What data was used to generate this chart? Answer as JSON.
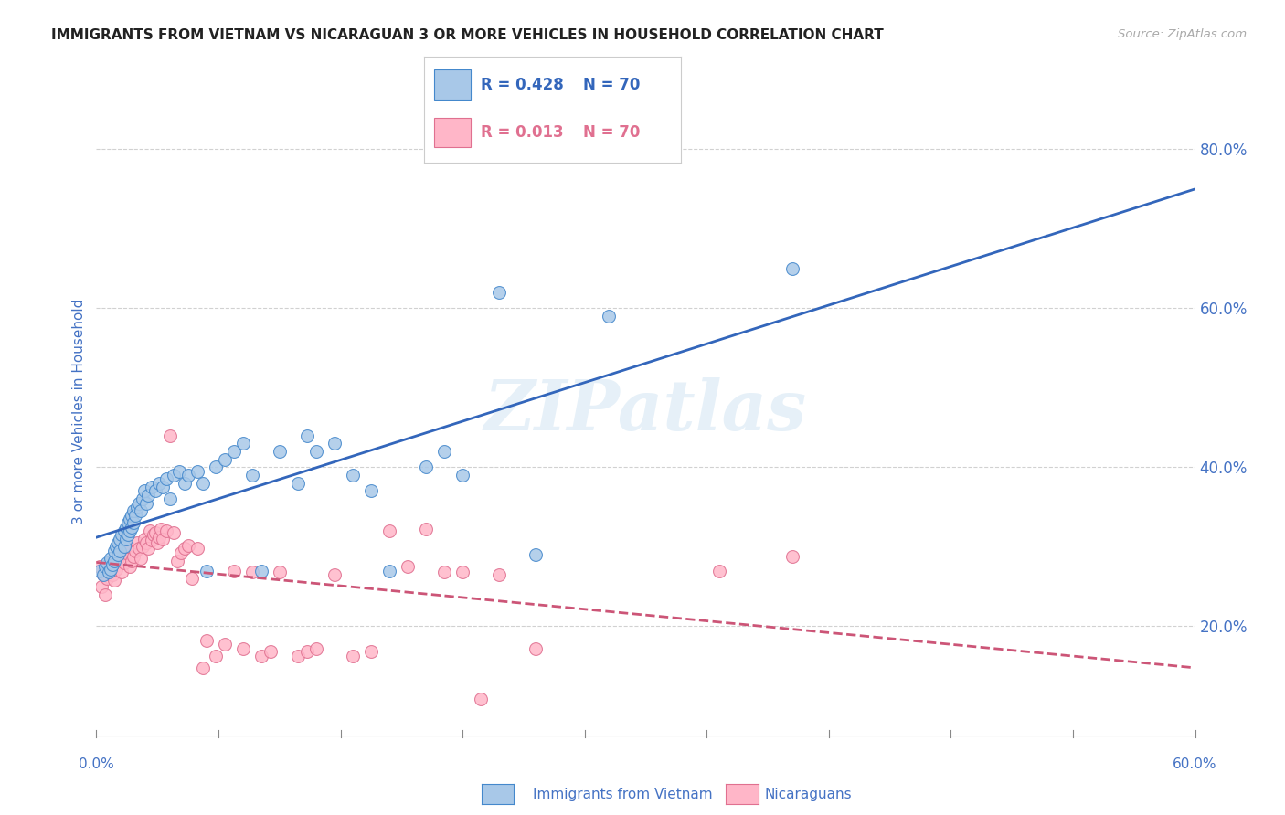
{
  "title": "IMMIGRANTS FROM VIETNAM VS NICARAGUAN 3 OR MORE VEHICLES IN HOUSEHOLD CORRELATION CHART",
  "source": "Source: ZipAtlas.com",
  "ylabel": "3 or more Vehicles in Household",
  "right_yticks": [
    "80.0%",
    "60.0%",
    "40.0%",
    "20.0%"
  ],
  "right_ytick_vals": [
    0.8,
    0.6,
    0.4,
    0.2
  ],
  "xlim": [
    0.0,
    0.6
  ],
  "ylim": [
    0.06,
    0.88
  ],
  "watermark": "ZIPatlas",
  "legend_vietnam_r": "R = 0.428",
  "legend_vietnam_n": "N = 70",
  "legend_nicaragua_r": "R = 0.013",
  "legend_nicaragua_n": "N = 70",
  "vietnam_color": "#a8c8e8",
  "nicaragua_color": "#ffb6c8",
  "vietnam_edge_color": "#4488cc",
  "nicaragua_edge_color": "#e07090",
  "vietnam_line_color": "#3366bb",
  "nicaragua_line_color": "#cc5577",
  "background_color": "#ffffff",
  "grid_color": "#cccccc",
  "title_color": "#333333",
  "axis_label_color": "#4472c4",
  "vietnam_points_x": [
    0.002,
    0.004,
    0.005,
    0.006,
    0.007,
    0.008,
    0.008,
    0.009,
    0.01,
    0.01,
    0.011,
    0.012,
    0.012,
    0.013,
    0.013,
    0.014,
    0.015,
    0.015,
    0.016,
    0.016,
    0.017,
    0.017,
    0.018,
    0.018,
    0.019,
    0.019,
    0.02,
    0.02,
    0.021,
    0.022,
    0.023,
    0.024,
    0.025,
    0.026,
    0.027,
    0.028,
    0.03,
    0.032,
    0.034,
    0.036,
    0.038,
    0.04,
    0.042,
    0.045,
    0.048,
    0.05,
    0.055,
    0.058,
    0.06,
    0.065,
    0.07,
    0.075,
    0.08,
    0.085,
    0.09,
    0.1,
    0.11,
    0.115,
    0.12,
    0.13,
    0.14,
    0.15,
    0.16,
    0.18,
    0.19,
    0.2,
    0.22,
    0.24,
    0.28,
    0.38
  ],
  "vietnam_points_y": [
    0.27,
    0.265,
    0.275,
    0.28,
    0.268,
    0.272,
    0.285,
    0.278,
    0.282,
    0.295,
    0.3,
    0.305,
    0.29,
    0.31,
    0.295,
    0.315,
    0.3,
    0.32,
    0.31,
    0.325,
    0.315,
    0.33,
    0.32,
    0.335,
    0.325,
    0.34,
    0.33,
    0.345,
    0.34,
    0.35,
    0.355,
    0.345,
    0.36,
    0.37,
    0.355,
    0.365,
    0.375,
    0.37,
    0.38,
    0.375,
    0.385,
    0.36,
    0.39,
    0.395,
    0.38,
    0.39,
    0.395,
    0.38,
    0.27,
    0.4,
    0.41,
    0.42,
    0.43,
    0.39,
    0.27,
    0.42,
    0.38,
    0.44,
    0.42,
    0.43,
    0.39,
    0.37,
    0.27,
    0.4,
    0.42,
    0.39,
    0.62,
    0.29,
    0.59,
    0.65
  ],
  "nicaragua_points_x": [
    0.002,
    0.003,
    0.004,
    0.005,
    0.006,
    0.007,
    0.008,
    0.009,
    0.01,
    0.011,
    0.012,
    0.013,
    0.014,
    0.015,
    0.016,
    0.017,
    0.018,
    0.019,
    0.02,
    0.021,
    0.022,
    0.023,
    0.024,
    0.025,
    0.026,
    0.027,
    0.028,
    0.029,
    0.03,
    0.031,
    0.032,
    0.033,
    0.034,
    0.035,
    0.036,
    0.038,
    0.04,
    0.042,
    0.044,
    0.046,
    0.048,
    0.05,
    0.052,
    0.055,
    0.058,
    0.06,
    0.065,
    0.07,
    0.075,
    0.08,
    0.085,
    0.09,
    0.095,
    0.1,
    0.11,
    0.115,
    0.12,
    0.13,
    0.14,
    0.15,
    0.16,
    0.17,
    0.18,
    0.19,
    0.2,
    0.21,
    0.22,
    0.24,
    0.34,
    0.38
  ],
  "nicaragua_points_y": [
    0.275,
    0.25,
    0.265,
    0.24,
    0.26,
    0.27,
    0.28,
    0.265,
    0.258,
    0.272,
    0.285,
    0.29,
    0.268,
    0.28,
    0.292,
    0.3,
    0.275,
    0.282,
    0.288,
    0.295,
    0.305,
    0.298,
    0.285,
    0.3,
    0.31,
    0.305,
    0.298,
    0.32,
    0.308,
    0.315,
    0.318,
    0.305,
    0.312,
    0.322,
    0.31,
    0.32,
    0.44,
    0.318,
    0.282,
    0.292,
    0.298,
    0.302,
    0.26,
    0.298,
    0.148,
    0.182,
    0.162,
    0.178,
    0.27,
    0.172,
    0.268,
    0.162,
    0.168,
    0.268,
    0.162,
    0.168,
    0.172,
    0.265,
    0.162,
    0.168,
    0.32,
    0.275,
    0.322,
    0.268,
    0.268,
    0.108,
    0.265,
    0.172,
    0.27,
    0.288
  ]
}
